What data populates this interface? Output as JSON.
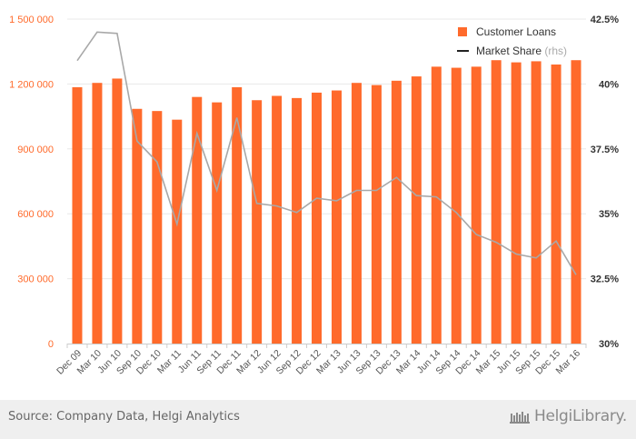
{
  "chart_data": {
    "type": "bar+line",
    "categories": [
      "Dec 09",
      "Mar 10",
      "Jun 10",
      "Sep 10",
      "Dec 10",
      "Mar 11",
      "Jun 11",
      "Sep 11",
      "Dec 11",
      "Mar 12",
      "Jun 12",
      "Sep 12",
      "Dec 12",
      "Mar 13",
      "Jun 13",
      "Sep 13",
      "Dec 13",
      "Mar 14",
      "Jun 14",
      "Sep 14",
      "Dec 14",
      "Mar 15",
      "Jun 15",
      "Sep 15",
      "Dec 15",
      "Mar 16"
    ],
    "series": [
      {
        "name": "Customer Loans",
        "type": "bar",
        "axis": "left",
        "color": "#ff6a2b",
        "values": [
          1185000,
          1205000,
          1225000,
          1085000,
          1075000,
          1035000,
          1140000,
          1115000,
          1185000,
          1125000,
          1145000,
          1135000,
          1160000,
          1170000,
          1205000,
          1195000,
          1215000,
          1235000,
          1280000,
          1275000,
          1280000,
          1310000,
          1300000,
          1305000,
          1290000,
          1310000
        ]
      },
      {
        "name": "Market Share",
        "legend_suffix": "(rhs)",
        "type": "line",
        "axis": "right",
        "color": "#a8a8a8",
        "values": [
          40.9,
          42.0,
          41.95,
          37.8,
          37.0,
          34.6,
          38.1,
          35.9,
          38.7,
          35.4,
          35.3,
          35.05,
          35.6,
          35.5,
          35.9,
          35.9,
          36.4,
          35.7,
          35.65,
          35.05,
          34.2,
          33.9,
          33.45,
          33.3,
          33.95,
          32.65
        ]
      }
    ],
    "y_left": {
      "ticks": [
        "0",
        "300 000",
        "600 000",
        "900 000",
        "1 200 000",
        "1 500 000"
      ],
      "min": 0,
      "max": 1500000
    },
    "y_right": {
      "ticks": [
        "30%",
        "32.5%",
        "35%",
        "37.5%",
        "40%",
        "42.5%"
      ],
      "min": 30,
      "max": 42.5
    },
    "grid": true,
    "legend_position": "top-right"
  },
  "footer": {
    "source": "Source: Company Data, Helgi Analytics",
    "logo_text": "HelgiLibrary."
  },
  "colors": {
    "left_axis_text": "#ff6a2b",
    "right_axis_text": "#333333",
    "gridline": "#e8e8e8"
  }
}
